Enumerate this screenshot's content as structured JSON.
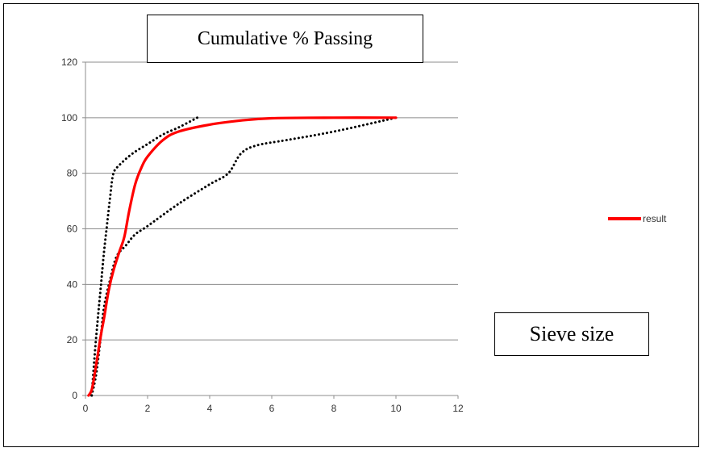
{
  "chart_data": {
    "type": "line",
    "title": "Cumulative % Passing",
    "annotation": "Sieve size",
    "xlim": [
      0,
      12
    ],
    "ylim": [
      0,
      120
    ],
    "x_ticks": [
      0,
      2,
      4,
      6,
      8,
      10,
      12
    ],
    "y_ticks": [
      0,
      20,
      40,
      60,
      80,
      100,
      120
    ],
    "grid": "horizontal",
    "legend_placement": "right",
    "series": [
      {
        "name": "result",
        "color": "#ff0000",
        "style": "solid",
        "points": [
          [
            0.1,
            0
          ],
          [
            0.2,
            2
          ],
          [
            0.3,
            8
          ],
          [
            0.4,
            15
          ],
          [
            0.5,
            22
          ],
          [
            0.6,
            28
          ],
          [
            0.75,
            38
          ],
          [
            0.9,
            45
          ],
          [
            1.1,
            52
          ],
          [
            1.25,
            57
          ],
          [
            1.4,
            66
          ],
          [
            1.6,
            76
          ],
          [
            1.8,
            82
          ],
          [
            2,
            86
          ],
          [
            2.5,
            92
          ],
          [
            3,
            95
          ],
          [
            4,
            97.5
          ],
          [
            5,
            99
          ],
          [
            6,
            99.8
          ],
          [
            8,
            100
          ],
          [
            10,
            100
          ]
        ]
      },
      {
        "color": "#000000",
        "style": "dotted",
        "points": [
          [
            0.2,
            0
          ],
          [
            0.3,
            15
          ],
          [
            0.4,
            28
          ],
          [
            0.5,
            40
          ],
          [
            0.6,
            52
          ],
          [
            0.7,
            62
          ],
          [
            0.8,
            72
          ],
          [
            0.9,
            80
          ],
          [
            1.1,
            83
          ],
          [
            1.5,
            87
          ],
          [
            2,
            90.5
          ],
          [
            2.5,
            94
          ],
          [
            3,
            96.5
          ],
          [
            3.6,
            100
          ]
        ]
      },
      {
        "color": "#000000",
        "style": "dotted",
        "points": [
          [
            0.2,
            0
          ],
          [
            0.35,
            8
          ],
          [
            0.5,
            22
          ],
          [
            0.6,
            32
          ],
          [
            0.8,
            42
          ],
          [
            1,
            50
          ],
          [
            1.3,
            54
          ],
          [
            1.6,
            58
          ],
          [
            2,
            61
          ],
          [
            3,
            69
          ],
          [
            4,
            76
          ],
          [
            4.6,
            80
          ],
          [
            5,
            87
          ],
          [
            5.5,
            90
          ],
          [
            6.5,
            92
          ],
          [
            8,
            95
          ],
          [
            10,
            100
          ]
        ]
      }
    ]
  }
}
